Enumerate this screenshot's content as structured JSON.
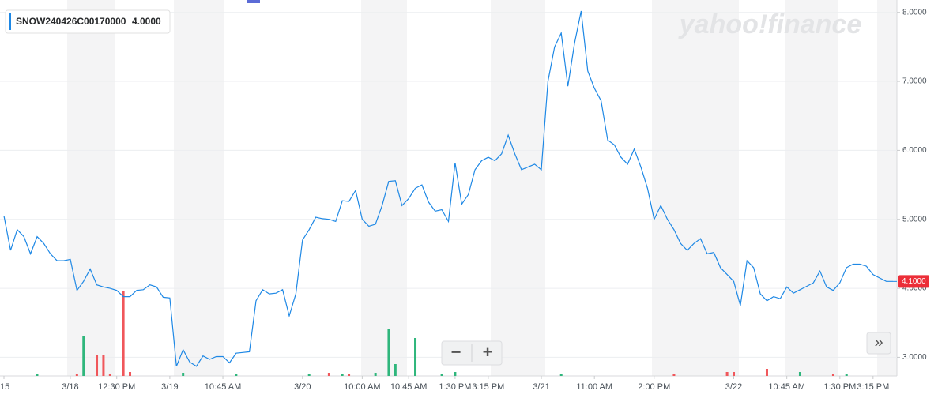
{
  "chart_data": {
    "type": "line",
    "watermark": "yahoo!finance",
    "legend": {
      "symbol": "SNOW240426C00170000",
      "value": "4.0000"
    },
    "last_price_label": {
      "value": 4.1,
      "label": "4.1000"
    },
    "zoom_out": "−",
    "zoom_in": "+",
    "scroll_button": "»",
    "ylim": [
      2.73,
      8.18
    ],
    "yticks": [
      {
        "value": 3,
        "label": "3.0000"
      },
      {
        "value": 4,
        "label": "4.0000"
      },
      {
        "value": 5,
        "label": "5.0000"
      },
      {
        "value": 6,
        "label": "6.0000"
      },
      {
        "value": 7,
        "label": "7.0000"
      },
      {
        "value": 8,
        "label": "8.0000"
      }
    ],
    "grid": true,
    "categories": [
      "15",
      null,
      null,
      null,
      null,
      null,
      null,
      null,
      null,
      null,
      "3/18",
      null,
      null,
      null,
      null,
      null,
      null,
      "12:30 PM",
      null,
      null,
      null,
      null,
      null,
      null,
      null,
      "3/19",
      null,
      null,
      null,
      null,
      null,
      null,
      null,
      "10:45 AM",
      null,
      null,
      null,
      null,
      null,
      null,
      null,
      null,
      null,
      null,
      null,
      "3/20",
      null,
      null,
      null,
      null,
      null,
      null,
      null,
      null,
      "10:00 AM",
      null,
      null,
      null,
      null,
      null,
      null,
      "10:45 AM",
      null,
      null,
      null,
      null,
      null,
      null,
      "1:30 PM",
      null,
      null,
      null,
      null,
      "3:15 PM",
      null,
      null,
      null,
      null,
      null,
      null,
      null,
      "3/21",
      null,
      null,
      null,
      null,
      null,
      null,
      null,
      "11:00 AM",
      null,
      null,
      null,
      null,
      null,
      null,
      null,
      null,
      "2:00 PM",
      null,
      null,
      null,
      null,
      null,
      null,
      null,
      null,
      null,
      null,
      null,
      "3/22",
      null,
      null,
      null,
      null,
      null,
      null,
      null,
      "10:45 AM",
      null,
      null,
      null,
      null,
      null,
      null,
      null,
      "1:30 PM",
      null,
      null,
      null,
      null,
      "3:15 PM",
      null,
      null,
      null
    ],
    "series": [
      {
        "name": "SNOW240426C00170000",
        "color": "#1e88e5",
        "values": [
          5.05,
          4.55,
          4.85,
          4.75,
          4.5,
          4.75,
          4.65,
          4.5,
          4.4,
          4.4,
          4.42,
          3.97,
          4.1,
          4.28,
          4.05,
          4.02,
          4.0,
          3.97,
          3.88,
          3.88,
          3.97,
          3.98,
          4.05,
          4.02,
          3.87,
          3.86,
          2.87,
          3.11,
          2.93,
          2.87,
          3.02,
          2.97,
          3.01,
          3.01,
          2.92,
          3.06,
          3.07,
          3.08,
          3.82,
          3.98,
          3.92,
          3.93,
          3.98,
          3.6,
          3.92,
          4.7,
          4.85,
          5.03,
          5.01,
          5.0,
          4.97,
          5.27,
          5.26,
          5.42,
          5.0,
          4.9,
          4.93,
          5.2,
          5.55,
          5.56,
          5.2,
          5.3,
          5.45,
          5.5,
          5.25,
          5.12,
          5.14,
          4.97,
          5.82,
          5.22,
          5.36,
          5.72,
          5.85,
          5.9,
          5.85,
          5.95,
          6.22,
          5.95,
          5.72,
          5.76,
          5.8,
          5.72,
          7.0,
          7.5,
          7.7,
          6.93,
          7.55,
          8.02,
          7.15,
          6.9,
          6.72,
          6.15,
          6.08,
          5.9,
          5.8,
          6.02,
          5.76,
          5.45,
          5.0,
          5.2,
          5.0,
          4.85,
          4.65,
          4.55,
          4.65,
          4.72,
          4.5,
          4.52,
          4.3,
          4.2,
          4.1,
          3.75,
          4.4,
          4.3,
          3.92,
          3.82,
          3.88,
          3.85,
          4.02,
          3.93,
          3.98,
          4.03,
          4.08,
          4.25,
          4.02,
          3.97,
          4.08,
          4.3,
          4.35,
          4.35,
          4.32,
          4.2,
          4.15,
          4.1,
          4.1
        ]
      }
    ],
    "volume_bars": [
      {
        "index": 5,
        "value": 3,
        "color": "#2fb67c"
      },
      {
        "index": 11,
        "value": 3,
        "color": "#f0575b"
      },
      {
        "index": 12,
        "value": 50,
        "color": "#2fb67c"
      },
      {
        "index": 14,
        "value": 26,
        "color": "#f0575b"
      },
      {
        "index": 15,
        "value": 26,
        "color": "#f0575b"
      },
      {
        "index": 16,
        "value": 3,
        "color": "#f0575b"
      },
      {
        "index": 18,
        "value": 108,
        "color": "#f0575b"
      },
      {
        "index": 19,
        "value": 5,
        "color": "#f0575b"
      },
      {
        "index": 27,
        "value": 4,
        "color": "#2fb67c"
      },
      {
        "index": 35,
        "value": 2,
        "color": "#2fb67c"
      },
      {
        "index": 46,
        "value": 2,
        "color": "#2fb67c"
      },
      {
        "index": 49,
        "value": 4,
        "color": "#f0575b"
      },
      {
        "index": 51,
        "value": 3,
        "color": "#2fb67c"
      },
      {
        "index": 52,
        "value": 3,
        "color": "#f0575b"
      },
      {
        "index": 56,
        "value": 4,
        "color": "#2fb67c"
      },
      {
        "index": 58,
        "value": 60,
        "color": "#2fb67c"
      },
      {
        "index": 59,
        "value": 15,
        "color": "#2fb67c"
      },
      {
        "index": 62,
        "value": 48,
        "color": "#2fb67c"
      },
      {
        "index": 66,
        "value": 3,
        "color": "#2fb67c"
      },
      {
        "index": 68,
        "value": 5,
        "color": "#2fb67c"
      },
      {
        "index": 84,
        "value": 3,
        "color": "#2fb67c"
      },
      {
        "index": 101,
        "value": 2,
        "color": "#f0575b"
      },
      {
        "index": 109,
        "value": 5,
        "color": "#f0575b"
      },
      {
        "index": 110,
        "value": 5,
        "color": "#f0575b"
      },
      {
        "index": 115,
        "value": 9,
        "color": "#f0575b"
      },
      {
        "index": 120,
        "value": 5,
        "color": "#2fb67c"
      },
      {
        "index": 125,
        "value": 3,
        "color": "#f0575b"
      },
      {
        "index": 127,
        "value": 2,
        "color": "#2fb67c"
      }
    ]
  }
}
